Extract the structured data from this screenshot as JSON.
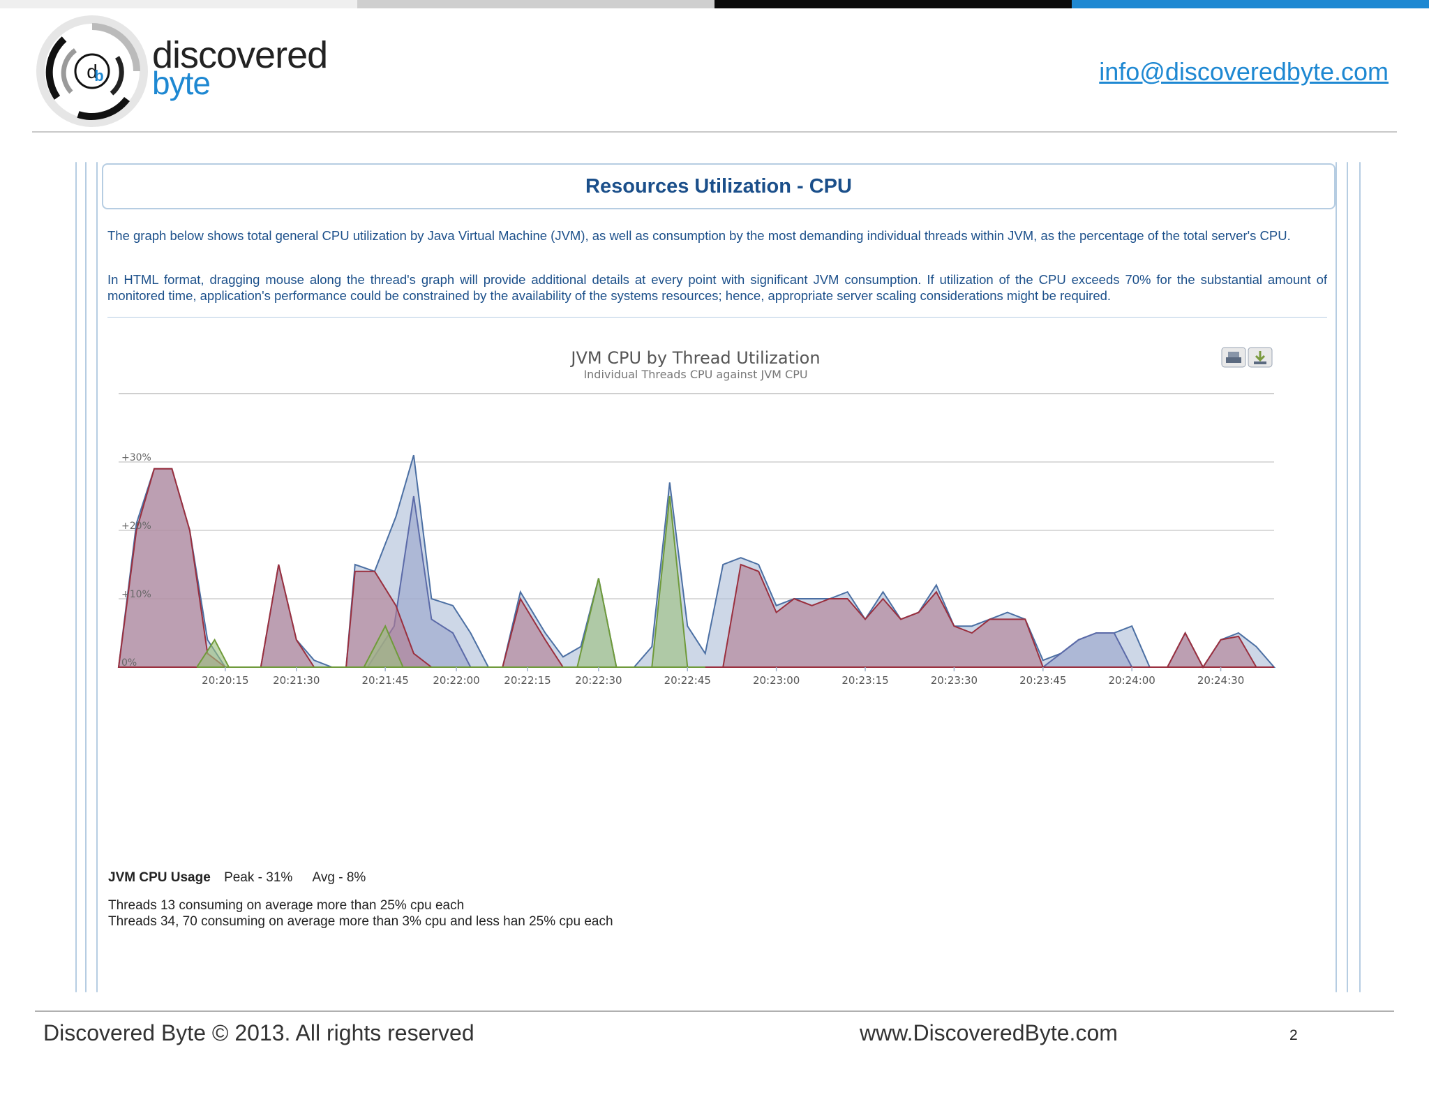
{
  "colors": {
    "brand_blue": "#1e88d2",
    "title_blue": "#1b4f8a",
    "topbar": [
      "#efefef",
      "#cfcfcf",
      "#0a0a0a",
      "#1e88d2"
    ],
    "jvm_series": "#aebfd9",
    "thread_13": "#b27d91",
    "thread_other": "#9cc07e"
  },
  "header": {
    "brand_line1": "discovered",
    "brand_line2": "byte",
    "email": "info@discoveredbyte.com",
    "logo_icon": "db-logo-icon"
  },
  "section": {
    "title": "Resources Utilization - CPU",
    "paragraph1": "The graph below shows total general CPU utilization by Java Virtual Machine (JVM), as well as consumption by the most demanding individual threads within JVM, as the percentage of the total server's CPU.",
    "paragraph2": "In HTML format, dragging mouse along the thread's graph will provide additional details at every point with significant JVM consumption. If utilization of the CPU exceeds 70% for the substantial amount of monitored time, application's performance could be constrained by the availability of the systems resources; hence, appropriate server scaling considerations might be required."
  },
  "chart_toolbar": {
    "print_icon": "print-icon",
    "download_icon": "download-icon"
  },
  "chart_data": {
    "type": "area",
    "title": "JVM CPU by Thread Utilization",
    "subtitle": "Individual Threads CPU against JVM CPU",
    "xlabel": "",
    "ylabel": "",
    "x_tick_labels": [
      "20:20:15",
      "20:21:30",
      "20:21:45",
      "20:22:00",
      "20:22:15",
      "20:22:30",
      "20:22:45",
      "20:23:00",
      "20:23:15",
      "20:23:30",
      "20:23:45",
      "20:24:00",
      "20:24:30"
    ],
    "y_tick_labels": [
      "0%",
      "+10%",
      "+20%",
      "+30%"
    ],
    "ylim": [
      0,
      40
    ],
    "xlim": [
      0,
      65
    ],
    "grid": true,
    "legend": "none",
    "series": [
      {
        "color": "#aebfd9",
        "points": [
          [
            0,
            0
          ],
          [
            1,
            21
          ],
          [
            2,
            29
          ],
          [
            3,
            29
          ],
          [
            4,
            20
          ],
          [
            5,
            4
          ],
          [
            6,
            0
          ],
          [
            8,
            0
          ],
          [
            9,
            15
          ],
          [
            10,
            4
          ],
          [
            11,
            1
          ],
          [
            12,
            0
          ],
          [
            13,
            0
          ],
          [
            12.5,
            0
          ],
          [
            12,
            0
          ],
          [
            12,
            0
          ],
          [
            12.3,
            0
          ],
          [
            12.6,
            0
          ],
          [
            12.8,
            0
          ],
          [
            12.9,
            0
          ],
          [
            13,
            0
          ],
          [
            13.5,
            0
          ],
          [
            14,
            0
          ],
          [
            14,
            0
          ],
          [
            14,
            0
          ],
          [
            14,
            0
          ],
          [
            14,
            0
          ],
          [
            14,
            0
          ],
          [
            14,
            0
          ],
          [
            14.5,
            0
          ],
          [
            15,
            0
          ],
          [
            15,
            0
          ],
          [
            15,
            0
          ],
          [
            15.2,
            0
          ],
          [
            15.5,
            0
          ],
          [
            15.8,
            0
          ],
          [
            16,
            0
          ],
          [
            16,
            0
          ],
          [
            16,
            0
          ],
          [
            16.1,
            0
          ],
          [
            16.2,
            0
          ],
          [
            16.4,
            0
          ],
          [
            16.6,
            0
          ],
          [
            16.8,
            0
          ],
          [
            17,
            0
          ],
          [
            18,
            0
          ],
          [
            18,
            0
          ],
          [
            18.5,
            0
          ],
          [
            19,
            0
          ],
          [
            19.3,
            0
          ],
          [
            19.6,
            0
          ],
          [
            20,
            0
          ],
          [
            21,
            0
          ],
          [
            22,
            0
          ],
          [
            22.5,
            0
          ],
          [
            23,
            0
          ],
          [
            23.5,
            0
          ],
          [
            24,
            0
          ],
          [
            25,
            0
          ],
          [
            26,
            0
          ],
          [
            27,
            0
          ],
          [
            28,
            0
          ],
          [
            29,
            0
          ],
          [
            30,
            0
          ],
          [
            31,
            0
          ],
          [
            32,
            0
          ],
          [
            33,
            0
          ],
          [
            34,
            0
          ],
          [
            35,
            0
          ],
          [
            36,
            0
          ],
          [
            37,
            0
          ],
          [
            38,
            0
          ],
          [
            39,
            0
          ],
          [
            40,
            0
          ],
          [
            41,
            0
          ],
          [
            42,
            0
          ],
          [
            43,
            0
          ],
          [
            44,
            0
          ],
          [
            45,
            0
          ],
          [
            46,
            0
          ],
          [
            47,
            0
          ],
          [
            48,
            0
          ],
          [
            49,
            0
          ],
          [
            50,
            0
          ],
          [
            51,
            0
          ],
          [
            52,
            0
          ],
          [
            53,
            0
          ],
          [
            54,
            0
          ],
          [
            55,
            0
          ],
          [
            56,
            0
          ],
          [
            57,
            0
          ],
          [
            58,
            0
          ],
          [
            59,
            0
          ],
          [
            60,
            0
          ],
          [
            61,
            0
          ],
          [
            62,
            0
          ],
          [
            63,
            0
          ],
          [
            64,
            0
          ],
          [
            65,
            0
          ]
        ]
      }
    ]
  },
  "summary": {
    "label": "JVM CPU Usage",
    "peak": "Peak - 31%",
    "avg": "Avg - 8%",
    "threads_line1": "Threads 13 consuming on average more than 25% cpu each",
    "threads_line2": "Threads 34, 70 consuming on average more than 3% cpu and less han 25% cpu each"
  },
  "footer": {
    "copyright": "Discovered Byte © 2013. All rights reserved",
    "site": "www.DiscoveredByte.com",
    "page_number": "2"
  }
}
